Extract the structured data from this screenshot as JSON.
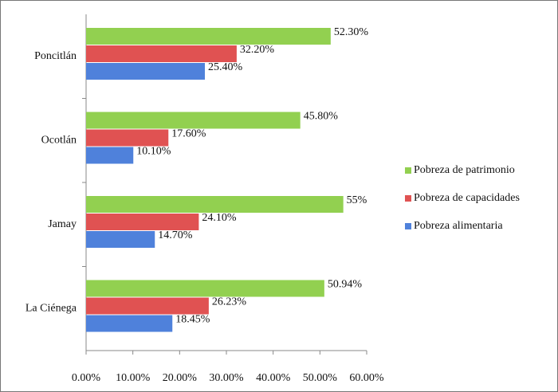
{
  "chart_data": {
    "type": "bar",
    "orientation": "horizontal",
    "categories": [
      "Poncitlán",
      "Ocotlán",
      "Jamay",
      "La Ciénega"
    ],
    "series": [
      {
        "name": "Pobreza de patrimonio",
        "color": "#92d050",
        "values": [
          52.3,
          45.8,
          55,
          50.94
        ],
        "value_labels": [
          "52.30%",
          "45.80%",
          "55%",
          "50.94%"
        ]
      },
      {
        "name": "Pobreza de capacidades",
        "color": "#e05252",
        "values": [
          32.2,
          17.6,
          24.1,
          26.23
        ],
        "value_labels": [
          "32.20%",
          "17.60%",
          "24.10%",
          "26.23%"
        ]
      },
      {
        "name": "Pobreza alimentaria",
        "color": "#4f81db",
        "values": [
          25.4,
          10.1,
          14.7,
          18.45
        ],
        "value_labels": [
          "25.40%",
          "10.10%",
          "14.70%",
          "18.45%"
        ]
      }
    ],
    "xlim": [
      0,
      60
    ],
    "xticks": [
      {
        "value": 0,
        "label": "0.00%"
      },
      {
        "value": 10,
        "label": "10.00%"
      },
      {
        "value": 20,
        "label": "20.00%"
      },
      {
        "value": 30,
        "label": "30.00%"
      },
      {
        "value": 40,
        "label": "40.00%"
      },
      {
        "value": 50,
        "label": "50.00%"
      },
      {
        "value": 60,
        "label": "60.00%"
      }
    ],
    "grid": false,
    "legend": "right"
  }
}
